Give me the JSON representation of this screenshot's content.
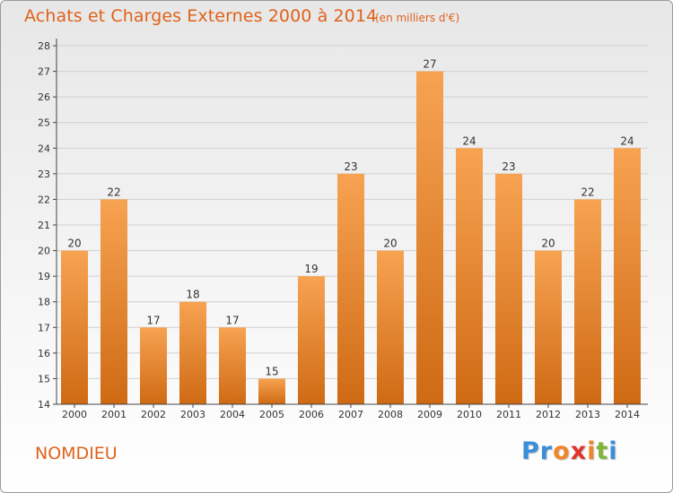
{
  "header": {
    "title": "Achats et Charges Externes 2000 à 2014",
    "subtitle": "(en milliers d'€)"
  },
  "footer": {
    "commune": "NOMDIEU",
    "logo": {
      "text": "Proxiti",
      "letters": [
        {
          "ch": "P",
          "color": "#3b8ed8"
        },
        {
          "ch": "r",
          "color": "#3b8ed8"
        },
        {
          "ch": "o",
          "color": "#f0862a"
        },
        {
          "ch": "x",
          "color": "#e2332a"
        },
        {
          "ch": "i",
          "color": "#f0862a"
        },
        {
          "ch": "t",
          "color": "#7fb539"
        },
        {
          "ch": "i",
          "color": "#3b8ed8"
        }
      ]
    }
  },
  "colors": {
    "accent": "#e0621a",
    "bar_top": "#f7a352",
    "bar_bottom": "#cf6a14",
    "grid": "#d0d0d0",
    "axis": "#444444"
  },
  "chart_data": {
    "type": "bar",
    "title": "Achats et Charges Externes 2000 à 2014",
    "subtitle": "(en milliers d'€)",
    "categories": [
      "2000",
      "2001",
      "2002",
      "2003",
      "2004",
      "2005",
      "2006",
      "2007",
      "2008",
      "2009",
      "2010",
      "2011",
      "2012",
      "2013",
      "2014"
    ],
    "values": [
      20,
      22,
      17,
      18,
      17,
      15,
      19,
      23,
      20,
      27,
      24,
      23,
      20,
      22,
      24
    ],
    "data_labels": true,
    "ylim": [
      14,
      28
    ],
    "yticks": [
      14,
      15,
      16,
      17,
      18,
      19,
      20,
      21,
      22,
      23,
      24,
      25,
      26,
      27,
      28
    ],
    "grid": "horizontal",
    "legend": "none"
  }
}
